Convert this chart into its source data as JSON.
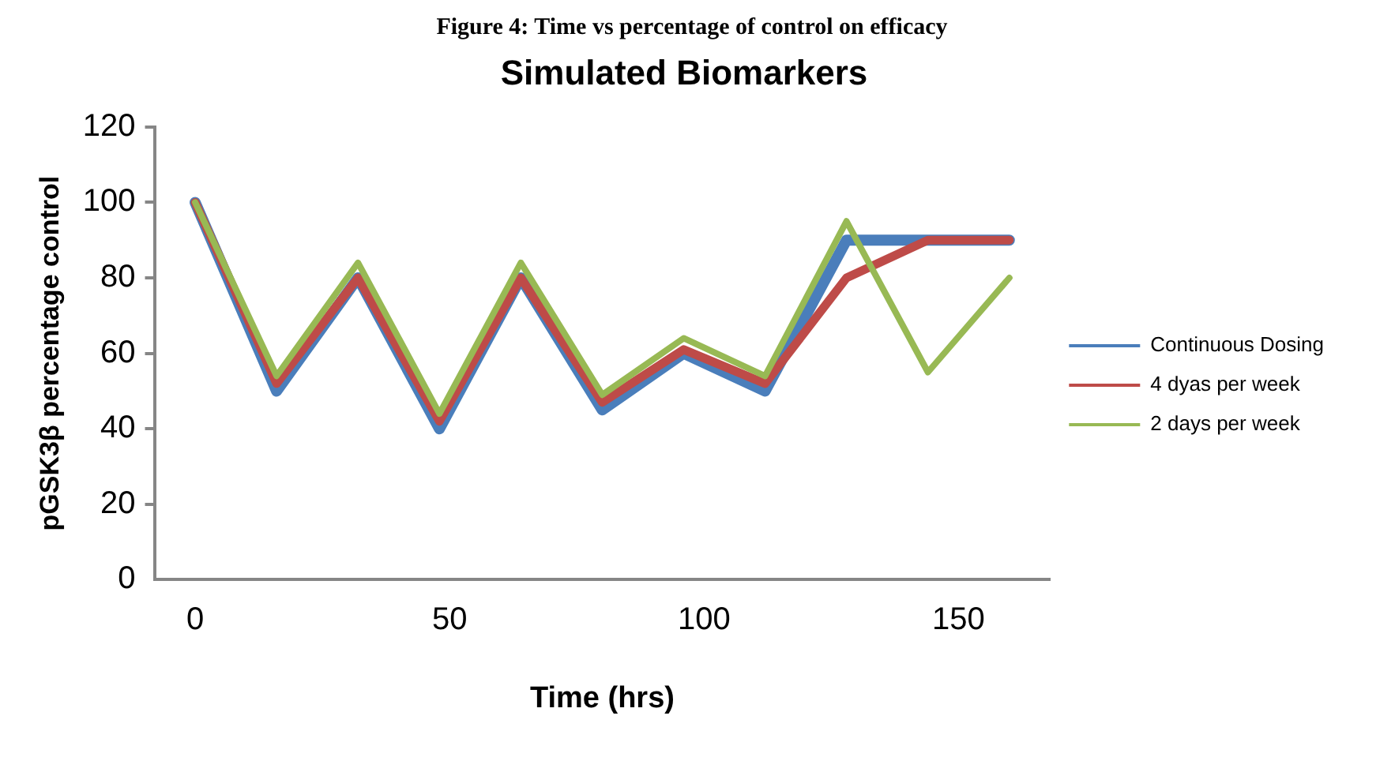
{
  "chart_data": {
    "type": "line",
    "title": "Simulated Biomarkers",
    "xlabel": "Time (hrs)",
    "ylabel": "pGSK3β percentage control",
    "annotations": [
      "Figure 4: Time vs percentage of control on efficacy"
    ],
    "x": [
      0,
      16,
      32,
      48,
      64,
      80,
      96,
      112,
      128,
      144,
      160
    ],
    "series": [
      {
        "name": "Continuous Dosing",
        "color": "#4a7ebb",
        "values": [
          100,
          50,
          80,
          40,
          80,
          45,
          60,
          50,
          90,
          90,
          90
        ]
      },
      {
        "name": "4 dyas per week",
        "color": "#be4b48",
        "values": [
          100,
          52,
          80,
          42,
          80,
          47,
          61,
          52,
          80,
          90,
          90
        ]
      },
      {
        "name": "2 days per week",
        "color": "#98b954",
        "values": [
          100,
          54,
          84,
          44,
          84,
          49,
          64,
          54,
          95,
          55,
          80
        ]
      }
    ],
    "xlim": [
      -8,
      168
    ],
    "xticks": [
      0,
      50,
      100,
      150
    ],
    "ylim": [
      0,
      120
    ],
    "yticks": [
      0,
      20,
      40,
      60,
      80,
      100,
      120
    ],
    "grid": false,
    "legend": "right",
    "marker": "none",
    "line_style": "solid"
  }
}
